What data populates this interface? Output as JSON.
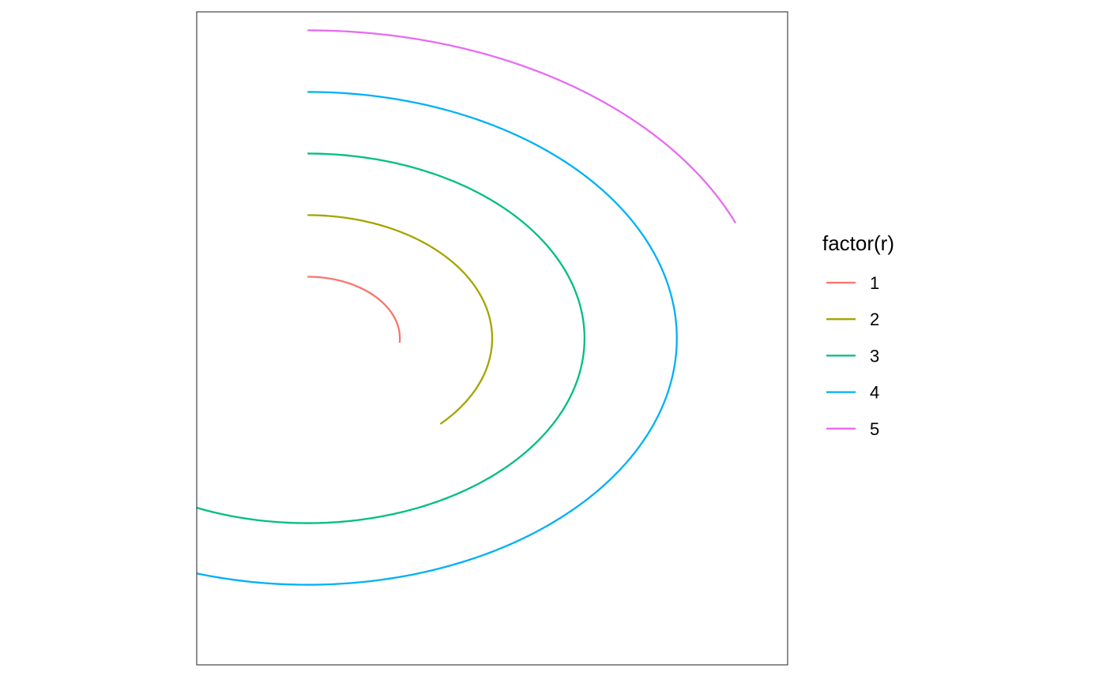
{
  "chart_data": {
    "type": "line",
    "coord": "polar",
    "xlim": [
      -1.2,
      5.2
    ],
    "ylim": [
      -5.3,
      5.3
    ],
    "grid": false,
    "legend": {
      "title": "factor(r)",
      "placement": "right",
      "entries": [
        "1",
        "2",
        "3",
        "4",
        "5"
      ]
    },
    "series": [
      {
        "name": "1",
        "color": "#F8766D",
        "r": 1,
        "theta_start_deg": 90,
        "theta_end_deg": -4
      },
      {
        "name": "2",
        "color": "#A3A500",
        "r": 2,
        "theta_start_deg": 90,
        "theta_end_deg": -44
      },
      {
        "name": "3",
        "color": "#00BF7D",
        "r": 3,
        "theta_start_deg": 90,
        "theta_end_deg": -116
      },
      {
        "name": "4",
        "color": "#00B0F6",
        "r": 4,
        "theta_start_deg": 90,
        "theta_end_deg": -214
      },
      {
        "name": "5",
        "color": "#E76BF3",
        "r": 5,
        "theta_start_deg": 90,
        "theta_end_deg": 22
      }
    ]
  }
}
